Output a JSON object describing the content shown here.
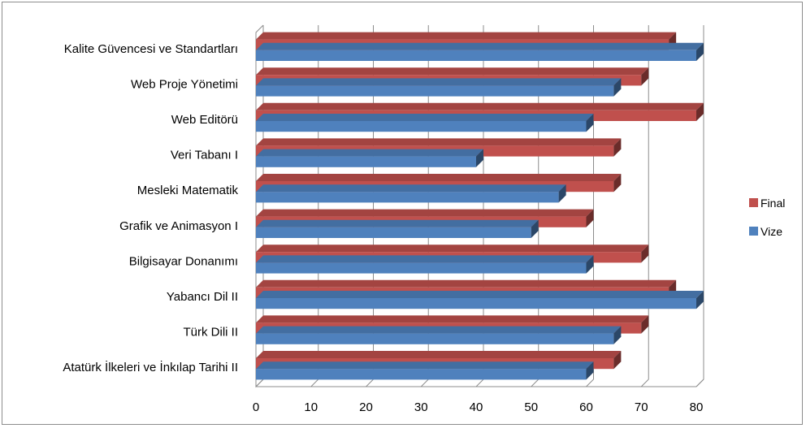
{
  "chart_data": {
    "type": "bar",
    "orientation": "horizontal",
    "categories": [
      "Kalite Güvencesi ve Standartları",
      "Web Proje Yönetimi",
      "Web Editörü",
      "Veri Tabanı I",
      "Mesleki Matematik",
      "Grafik ve Animasyon I",
      "Bilgisayar Donanımı",
      "Yabancı Dil II",
      "Türk Dili II",
      "Atatürk İlkeleri ve İnkılap Tarihi II"
    ],
    "series": [
      {
        "name": "Final",
        "color": "#c0504d",
        "values": [
          75,
          70,
          80,
          65,
          65,
          60,
          70,
          75,
          70,
          65
        ]
      },
      {
        "name": "Vize",
        "color": "#4f81bd",
        "values": [
          80,
          65,
          60,
          40,
          55,
          50,
          60,
          80,
          65,
          60
        ]
      }
    ],
    "xlim": [
      0,
      80
    ],
    "xticks": [
      "0",
      "10",
      "20",
      "30",
      "40",
      "50",
      "60",
      "70",
      "80"
    ],
    "grid": true,
    "legend": "right"
  }
}
